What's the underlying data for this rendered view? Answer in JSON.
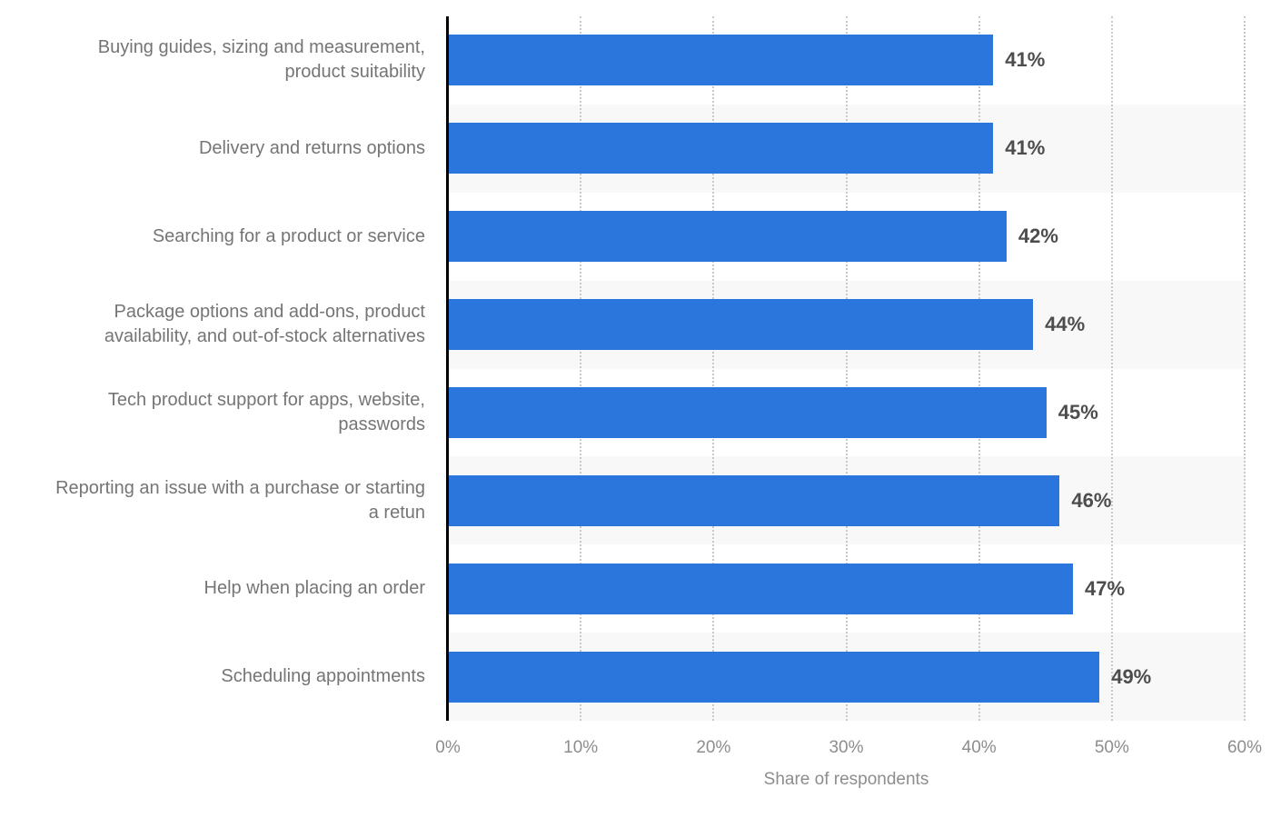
{
  "chart_data": {
    "type": "bar",
    "orientation": "horizontal",
    "title": "",
    "xlabel": "Share of respondents",
    "ylabel": "",
    "xlim": [
      0,
      60
    ],
    "xticks": [
      0,
      10,
      20,
      30,
      40,
      50,
      60
    ],
    "xtick_labels": [
      "0%",
      "10%",
      "20%",
      "30%",
      "40%",
      "50%",
      "60%"
    ],
    "grid": "vertical-dotted",
    "legend": "none",
    "categories": [
      "Buying guides, sizing and measurement, product suitability",
      "Delivery and returns options",
      "Searching for a product or service",
      "Package options and add-ons, product availability, and out-of-stock alternatives",
      "Tech product support for apps, website, passwords",
      "Reporting an issue with a purchase or starting a retun",
      "Help when placing an order",
      "Scheduling appointments"
    ],
    "values": [
      41,
      41,
      42,
      44,
      45,
      46,
      47,
      49
    ],
    "value_labels": [
      "41%",
      "41%",
      "42%",
      "44%",
      "45%",
      "46%",
      "47%",
      "49%"
    ]
  },
  "colors": {
    "bar": "#2b76dc",
    "row_stripe": "#f8f8f8",
    "gridline": "#c9c9c9",
    "axis_line": "#000000",
    "category_label": "#757575",
    "value_label": "#4d4d4d",
    "tick_label": "#8d8d8d"
  }
}
